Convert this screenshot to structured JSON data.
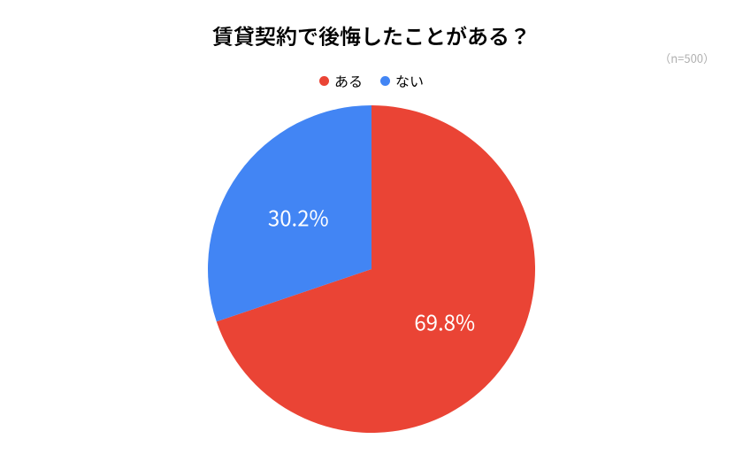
{
  "chart": {
    "type": "pie",
    "title": "賃貸契約で後悔したことがある？",
    "sample_size_label": "（n=500）",
    "background_color": "#ffffff",
    "title_color": "#000000",
    "title_fontsize": 24,
    "label_fontsize": 24,
    "label_color": "#ffffff",
    "legend_fontsize": 16,
    "sample_size_color": "#b0b0b0",
    "diameter": 370,
    "start_angle_deg": 0,
    "slices": [
      {
        "name": "ある",
        "value": 69.8,
        "label": "69.8%",
        "color": "#ea4435"
      },
      {
        "name": "ない",
        "value": 30.2,
        "label": "30.2%",
        "color": "#4285f4"
      }
    ],
    "legend": [
      {
        "label": "ある",
        "color": "#ea4435"
      },
      {
        "label": "ない",
        "color": "#4285f4"
      }
    ]
  }
}
